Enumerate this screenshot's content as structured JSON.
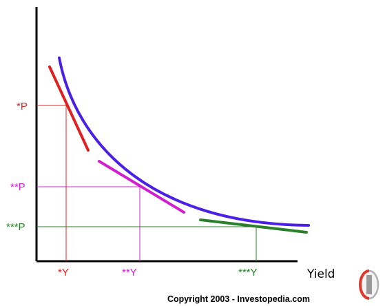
{
  "colors": {
    "curve": "#4a1fe6",
    "tangent_1": "#e02020",
    "tangent_2": "#d11fcf",
    "tangent_3": "#2a7f2a",
    "axis": "#000000"
  },
  "labels": {
    "p1": "*P",
    "p2": "**P",
    "p3": "***P",
    "y1": "*Y",
    "y2": "**Y",
    "y3": "***Y",
    "x_axis_title": "Yield",
    "copyright": "Copyright 2003 - Investopedia.com"
  },
  "logo": {
    "icon": "investopedia-logo-icon"
  }
}
